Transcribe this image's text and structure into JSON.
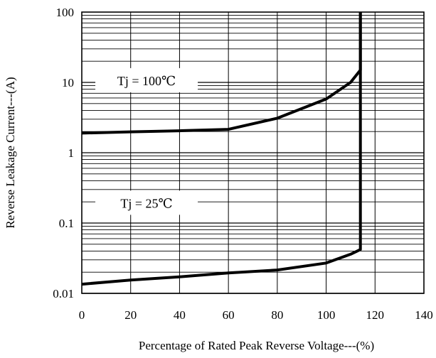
{
  "chart_data": {
    "type": "line",
    "title": "",
    "xlabel": "Percentage of Rated Peak Reverse Voltage---(%)",
    "ylabel": "Reverse Leakage Current---(A)",
    "xlim": [
      0,
      140
    ],
    "ylim": [
      0.01,
      100
    ],
    "yscale": "log",
    "grid": true,
    "x_ticks": [
      0,
      20,
      40,
      60,
      80,
      100,
      120,
      140
    ],
    "x_tick_labels": [
      "0",
      "20",
      "40",
      "60",
      "80",
      "100",
      "120",
      "140"
    ],
    "y_ticks": [
      0.01,
      0.1,
      1,
      10,
      100
    ],
    "y_tick_labels": [
      "0.01",
      "0.1",
      "1",
      "10",
      "100"
    ],
    "series": [
      {
        "x": [
          0,
          20,
          40,
          60,
          80,
          100,
          110,
          114,
          114,
          114
        ],
        "y": [
          1.9,
          1.98,
          2.05,
          2.15,
          3.1,
          5.8,
          10.0,
          15.0,
          40.0,
          100.0
        ]
      },
      {
        "x": [
          0,
          20,
          40,
          60,
          80,
          100,
          110,
          114,
          114
        ],
        "y": [
          0.0135,
          0.0155,
          0.0172,
          0.0195,
          0.0215,
          0.027,
          0.036,
          0.042,
          100.0
        ]
      }
    ],
    "annotations": [
      {
        "text": "Tj = 100℃",
        "x": 26.5,
        "y": 10.5
      },
      {
        "text": "Tj = 25℃",
        "x": 26.5,
        "y": 0.19
      }
    ]
  }
}
